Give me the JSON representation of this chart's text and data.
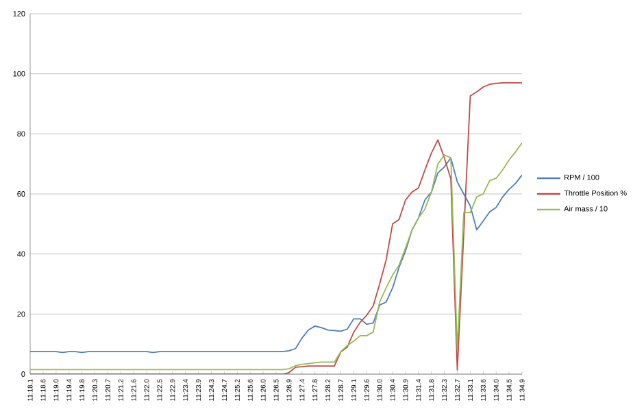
{
  "chart_data": {
    "type": "line",
    "categories": [
      "11:18.1",
      null,
      "11:18.6",
      null,
      "11:19.0",
      null,
      "11:19.4",
      null,
      "11:19.8",
      null,
      "11:20.3",
      null,
      "11:20.7",
      null,
      "11:21.2",
      null,
      "11:21.6",
      null,
      "11:22.0",
      null,
      "11:22.5",
      null,
      "11:22.9",
      null,
      "11:23.4",
      null,
      "11:23.9",
      null,
      "11:24.3",
      null,
      "11:24.7",
      null,
      "11:25.2",
      null,
      "11:25.6",
      null,
      "11:26.0",
      null,
      "11:26.5",
      null,
      "11:26.9",
      null,
      "11:27.4",
      null,
      "11:27.8",
      null,
      "11:28.2",
      null,
      "11:28.7",
      null,
      "11:29.1",
      null,
      "11:29.6",
      null,
      "11:30.0",
      null,
      "11:30.4",
      null,
      "11:30.9",
      null,
      "11:31.4",
      null,
      "11:31.8",
      null,
      "11:32.3",
      null,
      "11:32.7",
      null,
      "11:33.1",
      null,
      "11:33.6",
      null,
      "11:34.0",
      null,
      "11:34.5",
      null,
      "11:34.9"
    ],
    "series": [
      {
        "name": "RPM / 100",
        "color": "#4a7ebb",
        "values": [
          7.5,
          7.5,
          7.5,
          7.5,
          7.5,
          7.2,
          7.5,
          7.5,
          7.2,
          7.5,
          7.5,
          7.5,
          7.5,
          7.5,
          7.5,
          7.5,
          7.5,
          7.5,
          7.5,
          7.2,
          7.5,
          7.5,
          7.5,
          7.5,
          7.5,
          7.5,
          7.5,
          7.5,
          7.5,
          7.5,
          7.5,
          7.5,
          7.5,
          7.5,
          7.5,
          7.5,
          7.5,
          7.5,
          7.5,
          7.5,
          7.8,
          8.5,
          12,
          14.7,
          16,
          15.5,
          14.7,
          14.5,
          14.3,
          15,
          18.4,
          18.4,
          16.6,
          17,
          23,
          24,
          28.7,
          35.6,
          41,
          48,
          52,
          58,
          60.6,
          67,
          69,
          72,
          64,
          60,
          56,
          48,
          51,
          54,
          55.5,
          59,
          61.5,
          63.5,
          66.3
        ]
      },
      {
        "name": "Throttle Position %",
        "color": "#be4b48",
        "values": [
          0,
          0,
          0,
          0,
          0,
          0,
          0,
          0,
          0,
          0,
          0,
          0,
          0,
          0,
          0,
          0,
          0,
          0,
          0,
          0,
          0,
          0,
          0,
          0,
          0,
          0,
          0,
          0,
          0,
          0,
          0,
          0,
          0,
          0,
          0,
          0,
          0,
          0,
          0,
          0,
          0.5,
          2.3,
          2.5,
          2.7,
          2.7,
          2.7,
          2.7,
          2.7,
          7.4,
          9,
          14,
          17.3,
          19.6,
          22.7,
          30,
          38,
          50,
          51.5,
          58,
          60.6,
          62,
          68,
          73.6,
          78,
          72,
          65,
          1.4,
          47,
          92.6,
          94,
          95.6,
          96.5,
          96.8,
          97,
          97,
          97,
          97
        ]
      },
      {
        "name": "Air mass / 10",
        "color": "#98b954",
        "values": [
          1.5,
          1.5,
          1.5,
          1.5,
          1.5,
          1.5,
          1.5,
          1.5,
          1.5,
          1.5,
          1.5,
          1.5,
          1.5,
          1.5,
          1.5,
          1.5,
          1.5,
          1.5,
          1.5,
          1.5,
          1.5,
          1.5,
          1.5,
          1.5,
          1.5,
          1.5,
          1.5,
          1.5,
          1.5,
          1.5,
          1.5,
          1.5,
          1.5,
          1.5,
          1.5,
          1.5,
          1.5,
          1.5,
          1.5,
          1.5,
          1.8,
          2.8,
          3.3,
          3.5,
          3.8,
          4,
          4,
          4,
          7.5,
          9.5,
          11,
          12.8,
          12.8,
          14,
          24,
          28.7,
          33,
          36.3,
          42,
          48,
          52,
          55,
          60.6,
          70,
          73,
          72,
          8.2,
          53.8,
          53.8,
          59,
          60,
          64.4,
          65.2,
          68,
          71.3,
          74,
          77
        ]
      }
    ],
    "ylim": [
      0,
      120
    ],
    "yticks": [
      0,
      20,
      40,
      60,
      80,
      100,
      120
    ],
    "grid": "y",
    "legend": "right",
    "marker": "none",
    "line_style": "solid"
  }
}
